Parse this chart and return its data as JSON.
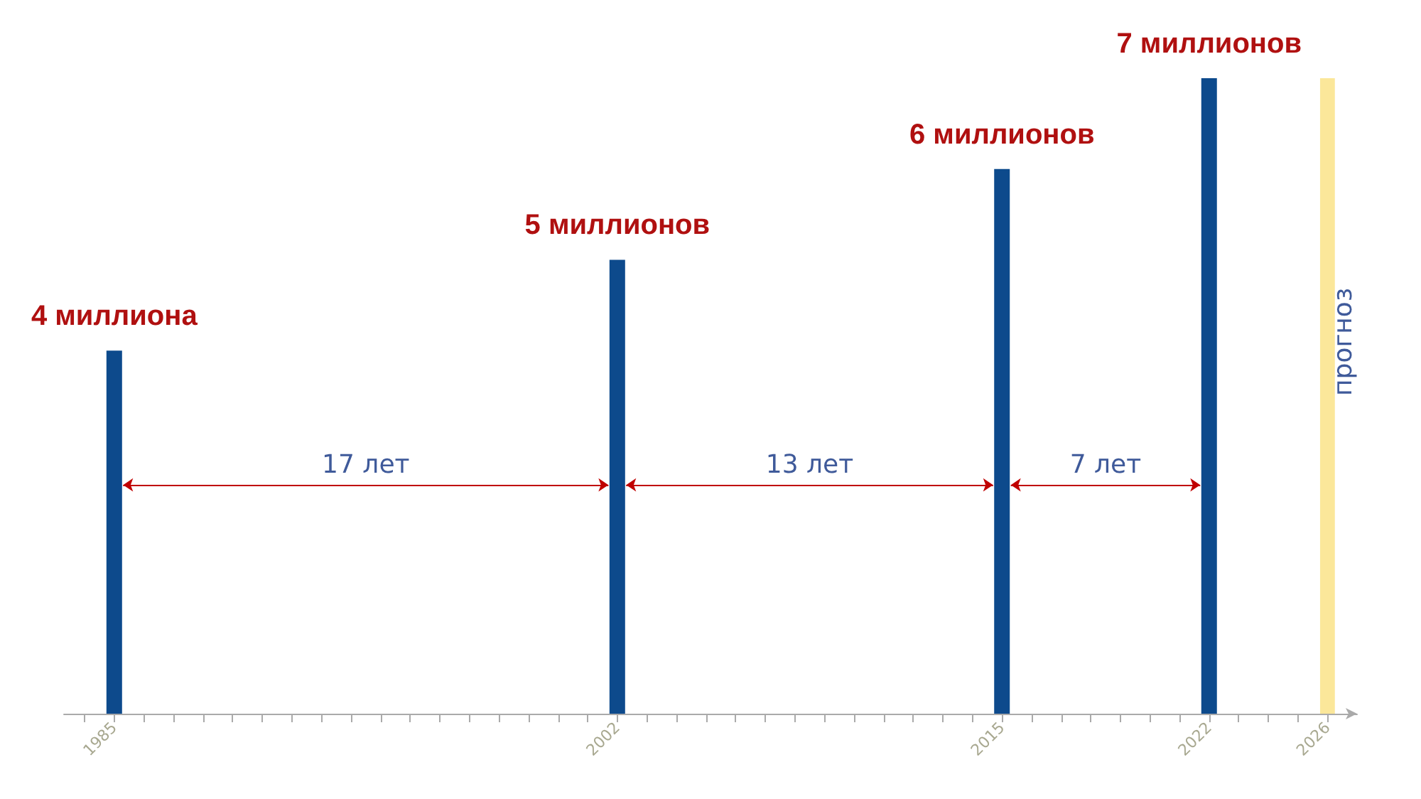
{
  "chart_data": {
    "type": "bar",
    "x": [
      1985,
      2002,
      2015,
      2022
    ],
    "values": [
      4,
      5,
      6,
      7
    ],
    "color": "#0d4a8c",
    "value_labels": [
      "4 миллиона",
      "5 миллионов",
      "6 миллионов",
      "7 миллионов"
    ],
    "xlim": [
      1983.3,
      2027
    ],
    "xticks": [
      {
        "value": 1984,
        "label": null
      },
      1985,
      {
        "value": 1986,
        "label": null
      },
      {
        "value": 1987,
        "label": null
      },
      {
        "value": 1988,
        "label": null
      },
      {
        "value": 1989,
        "label": null
      },
      {
        "value": 1990,
        "label": null
      },
      {
        "value": 1991,
        "label": null
      },
      {
        "value": 1992,
        "label": null
      },
      {
        "value": 1993,
        "label": null
      },
      {
        "value": 1994,
        "label": null
      },
      {
        "value": 1995,
        "label": null
      },
      {
        "value": 1996,
        "label": null
      },
      {
        "value": 1997,
        "label": null
      },
      {
        "value": 1998,
        "label": null
      },
      {
        "value": 1999,
        "label": null
      },
      {
        "value": 2000,
        "label": null
      },
      {
        "value": 2001,
        "label": null
      },
      2002,
      {
        "value": 2003,
        "label": null
      },
      {
        "value": 2004,
        "label": null
      },
      {
        "value": 2005,
        "label": null
      },
      {
        "value": 2006,
        "label": null
      },
      {
        "value": 2007,
        "label": null
      },
      {
        "value": 2008,
        "label": null
      },
      {
        "value": 2009,
        "label": null
      },
      {
        "value": 2010,
        "label": null
      },
      {
        "value": 2011,
        "label": null
      },
      {
        "value": 2012,
        "label": null
      },
      {
        "value": 2013,
        "label": null
      },
      {
        "value": 2014,
        "label": null
      },
      2015,
      {
        "value": 2016,
        "label": null
      },
      {
        "value": 2017,
        "label": null
      },
      {
        "value": 2018,
        "label": null
      },
      {
        "value": 2019,
        "label": null
      },
      {
        "value": 2020,
        "label": null
      },
      {
        "value": 2021,
        "label": null
      },
      2022,
      {
        "value": 2023,
        "label": null
      },
      {
        "value": 2024,
        "label": null
      },
      {
        "value": 2025,
        "label": null
      },
      2026
    ],
    "bands": [
      {
        "axis": "x",
        "from": 2025.75,
        "to": 2026.25,
        "label": "прогноз",
        "color": "#fbe79a"
      }
    ],
    "annotations": [
      "17 лет",
      "13 лет",
      "7 лет"
    ],
    "grid": false
  }
}
